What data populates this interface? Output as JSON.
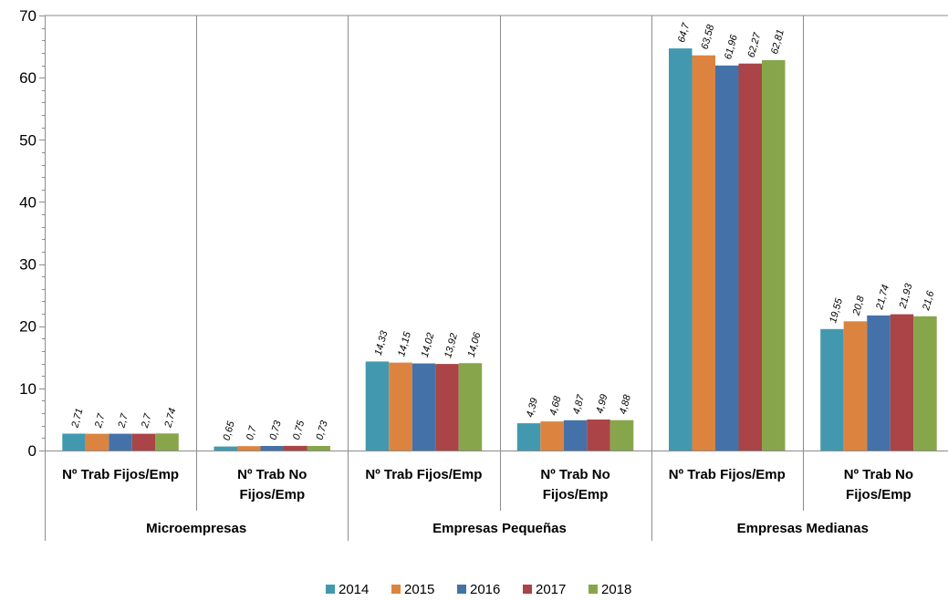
{
  "chart_data": {
    "type": "bar",
    "title": "",
    "xlabel": "",
    "ylabel": "",
    "ylim": [
      0,
      70
    ],
    "yticks": [
      0,
      10,
      20,
      30,
      40,
      50,
      60,
      70
    ],
    "grid": "vertical separators only",
    "legend_position": "bottom",
    "groups": [
      "Microempresas",
      "Empresas Pequeñas",
      "Empresas Medianas"
    ],
    "categories": [
      {
        "label_lines": [
          "Nº Trab Fijos/Emp"
        ],
        "group": "Microempresas"
      },
      {
        "label_lines": [
          "Nº Trab No",
          "Fijos/Emp"
        ],
        "group": "Microempresas"
      },
      {
        "label_lines": [
          "Nº Trab Fijos/Emp"
        ],
        "group": "Empresas Pequeñas"
      },
      {
        "label_lines": [
          "Nº Trab No",
          "Fijos/Emp"
        ],
        "group": "Empresas Pequeñas"
      },
      {
        "label_lines": [
          "Nº Trab Fijos/Emp"
        ],
        "group": "Empresas Medianas"
      },
      {
        "label_lines": [
          "Nº Trab No",
          "Fijos/Emp"
        ],
        "group": "Empresas Medianas"
      }
    ],
    "series": [
      {
        "name": "2014",
        "color": "#4299AF",
        "values": [
          2.71,
          0.65,
          14.33,
          4.39,
          64.7,
          19.55
        ],
        "labels": [
          "2,71",
          "0,65",
          "14,33",
          "4,39",
          "64,7",
          "19,55"
        ]
      },
      {
        "name": "2015",
        "color": "#DC843F",
        "values": [
          2.7,
          0.7,
          14.15,
          4.68,
          63.58,
          20.8
        ],
        "labels": [
          "2,7",
          "0,7",
          "14,15",
          "4,68",
          "63,58",
          "20,8"
        ]
      },
      {
        "name": "2016",
        "color": "#4472A8",
        "values": [
          2.7,
          0.73,
          14.02,
          4.87,
          61.96,
          21.74
        ],
        "labels": [
          "2,7",
          "0,73",
          "14,02",
          "4,87",
          "61,96",
          "21,74"
        ]
      },
      {
        "name": "2017",
        "color": "#AA4446",
        "values": [
          2.7,
          0.75,
          13.92,
          4.99,
          62.27,
          21.93
        ],
        "labels": [
          "2,7",
          "0,75",
          "13,92",
          "4,99",
          "62,27",
          "21,93"
        ]
      },
      {
        "name": "2018",
        "color": "#87A64B",
        "values": [
          2.74,
          0.73,
          14.06,
          4.88,
          62.81,
          21.6
        ],
        "labels": [
          "2,74",
          "0,73",
          "14,06",
          "4,88",
          "62,81",
          "21,6"
        ]
      }
    ]
  }
}
